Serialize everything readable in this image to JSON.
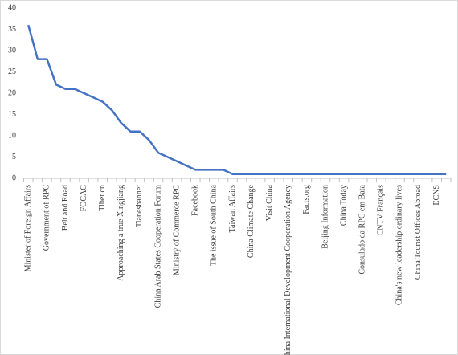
{
  "chart_data": {
    "type": "line",
    "categories": [
      "Minister of Foreign Affairs",
      null,
      "Government of RPC",
      null,
      "Belt and Road",
      null,
      "FOCAC",
      null,
      "Tibet.cn",
      null,
      "Approaching a true Xingjiang",
      null,
      "Tianeshannet",
      null,
      "China Arab States Cooperation Forum",
      null,
      "Ministry of Commerce RPC",
      null,
      "Facebook",
      null,
      "The issue of South China",
      null,
      "Taiwan Affairs",
      null,
      "China Climate Change",
      null,
      "Visit China",
      null,
      "China International Development Cooperation Agency",
      null,
      "Facts.org",
      null,
      "Beijing Information",
      null,
      "China Today",
      null,
      "Consulado da RPC em Bata",
      null,
      "CNTV Français",
      null,
      "China's new leadership ordinary lives",
      null,
      "China Tourist Offices Abroad",
      null,
      "ECNS",
      null
    ],
    "series": [
      {
        "color": "#4472c4",
        "values": [
          36,
          28,
          28,
          22,
          21,
          21,
          20,
          19,
          18,
          16,
          13,
          11,
          11,
          9,
          6,
          5,
          4,
          3,
          2,
          2,
          2,
          2,
          1,
          1,
          1,
          1,
          1,
          1,
          1,
          1,
          1,
          1,
          1,
          1,
          1,
          1,
          1,
          1,
          1,
          1,
          1,
          1,
          1,
          1,
          1,
          1
        ]
      }
    ],
    "ylim": [
      0,
      40
    ],
    "yticks": [
      0,
      5,
      10,
      15,
      20,
      25,
      30,
      35,
      40
    ],
    "grid": false
  }
}
